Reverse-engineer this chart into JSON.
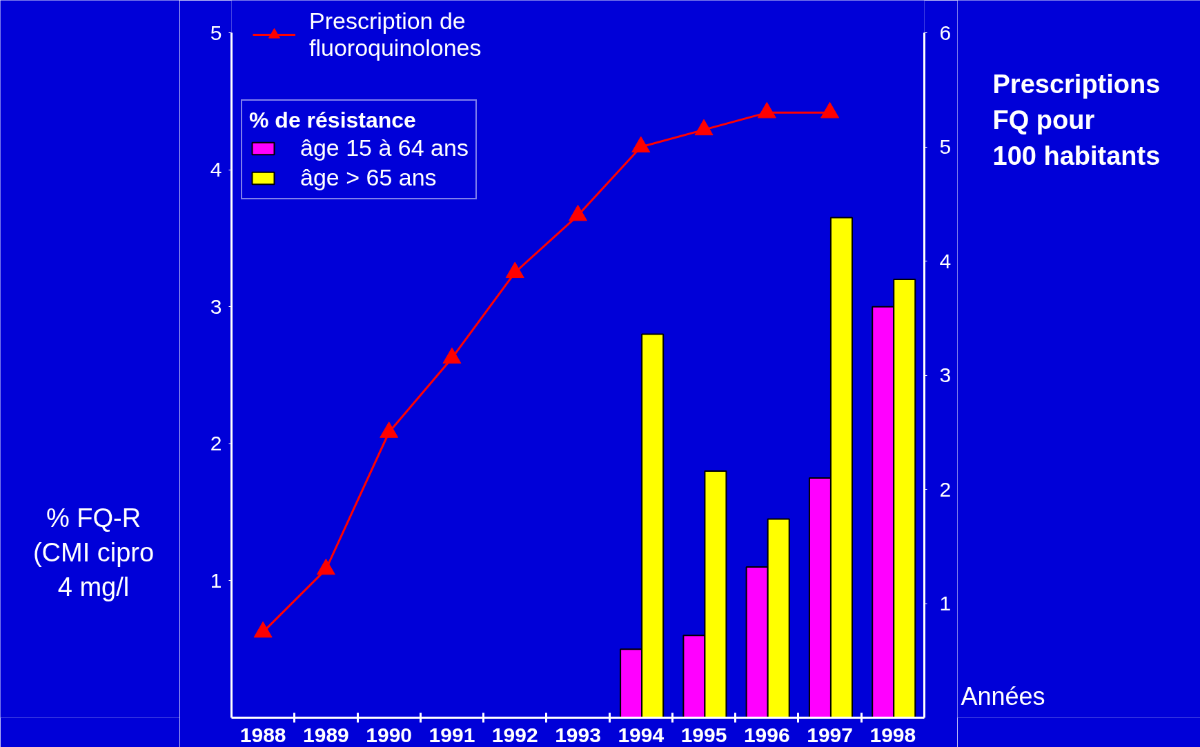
{
  "chart_data": {
    "type": "bar",
    "categories": [
      "1988",
      "1989",
      "1990",
      "1991",
      "1992",
      "1993",
      "1994",
      "1995",
      "1996",
      "1997",
      "1998"
    ],
    "series": [
      {
        "name": "âge 15 à 64 ans",
        "color": "#ff00ff",
        "values": [
          null,
          null,
          null,
          null,
          null,
          null,
          0.5,
          0.6,
          1.1,
          1.75,
          3.0
        ]
      },
      {
        "name": "âge > 65 ans",
        "color": "#ffff00",
        "values": [
          null,
          null,
          null,
          null,
          null,
          null,
          2.8,
          1.8,
          1.45,
          3.65,
          3.2
        ]
      },
      {
        "name": "Prescription de\nfluoroquinolones",
        "type": "line",
        "axis": "y2",
        "color": "#ff0000",
        "values": [
          0.75,
          1.3,
          2.5,
          3.15,
          3.9,
          4.4,
          5.0,
          5.15,
          5.3,
          5.3,
          null
        ]
      }
    ],
    "ylabel": "% FQ-R\n(CMI cipro\n4 mg/l",
    "y2label": "Prescriptions\nFQ pour\n100 habitants",
    "xlabel": "Années",
    "legend_title": "% de résistance",
    "legend": "top left",
    "marker": "triangle",
    "ylim": [
      0,
      5
    ],
    "yticks": [
      1,
      2,
      3,
      4,
      5
    ],
    "y2lim": [
      0,
      6
    ],
    "y2ticks": [
      1,
      2,
      3,
      4,
      5,
      6
    ]
  }
}
